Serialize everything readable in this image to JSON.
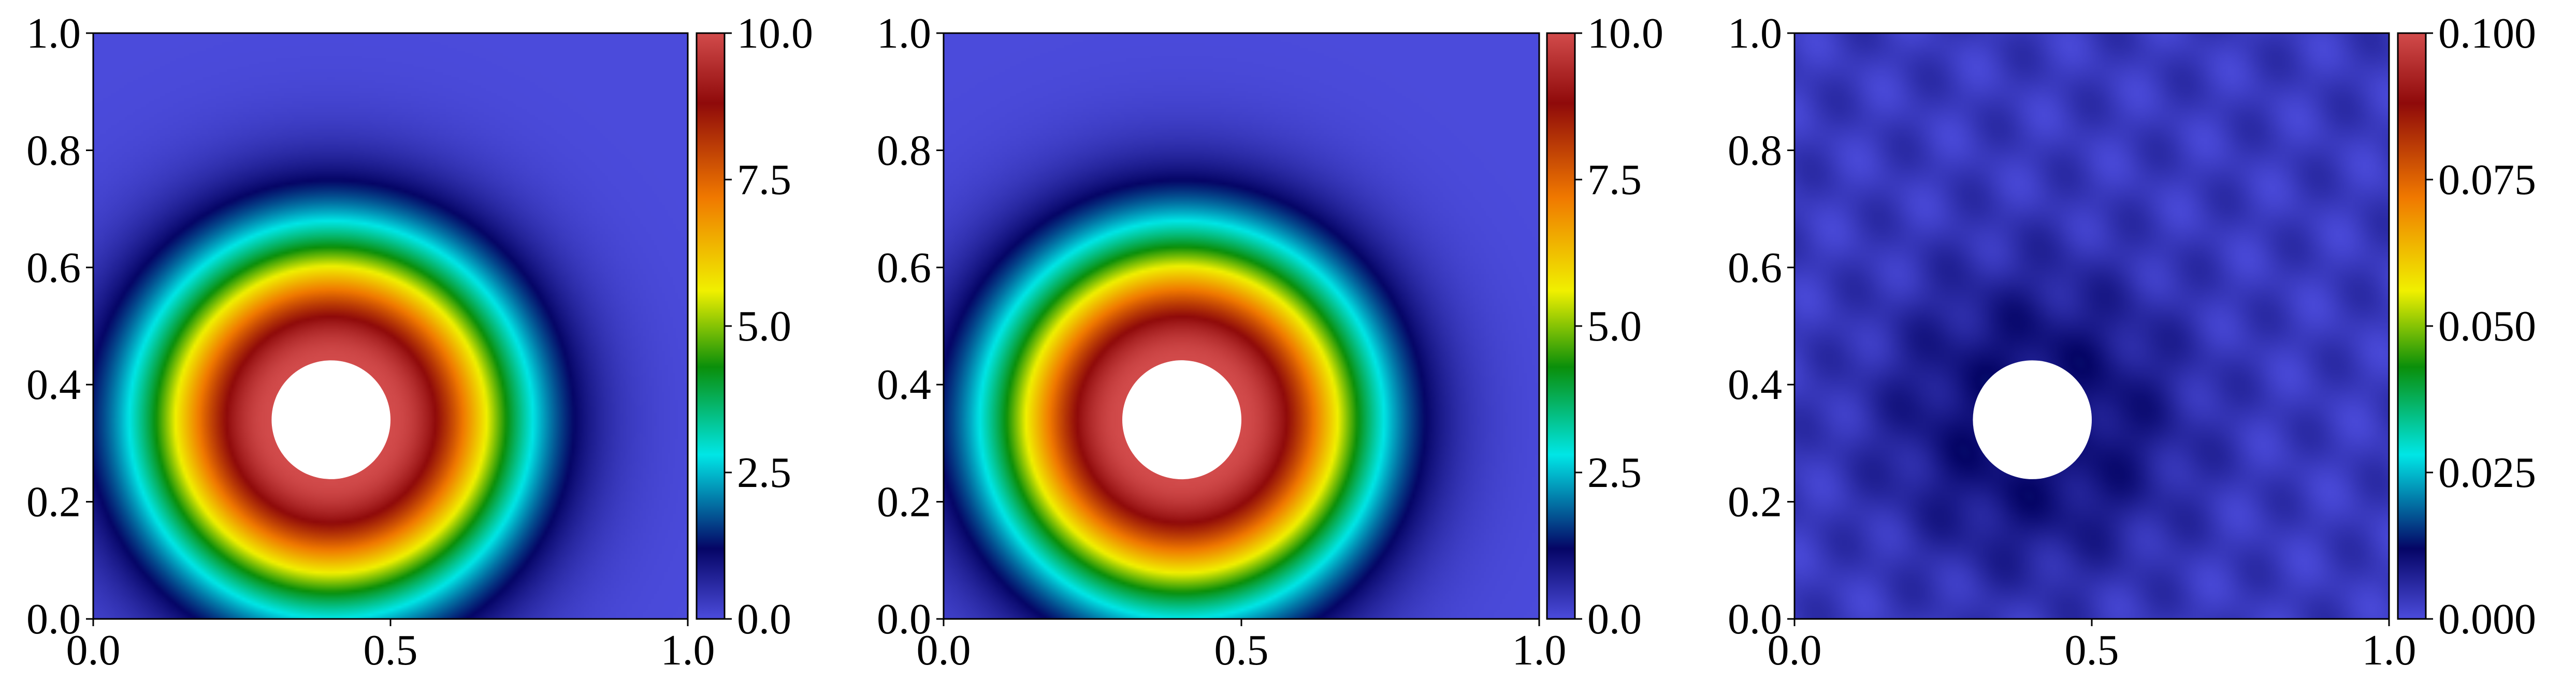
{
  "chart_data": [
    {
      "type": "heatmap",
      "title": "",
      "xlabel": "",
      "ylabel": "",
      "xlim": [
        0.0,
        1.0
      ],
      "ylim": [
        0.0,
        1.0
      ],
      "x_ticks": [
        "0.0",
        "0.5",
        "1.0"
      ],
      "y_ticks": [
        "0.0",
        "0.2",
        "0.4",
        "0.6",
        "0.8",
        "1.0"
      ],
      "colorbar": {
        "range": [
          0.0,
          10.0
        ],
        "ticks": [
          "0.0",
          "2.5",
          "5.0",
          "7.5",
          "10.0"
        ],
        "colormap": "jet"
      },
      "hole": {
        "cx": 0.4,
        "cy": 0.34,
        "r": 0.1
      },
      "field": {
        "peak": 10.0,
        "background": 0.0,
        "decay_width": 0.38
      }
    },
    {
      "type": "heatmap",
      "title": "",
      "xlabel": "",
      "ylabel": "",
      "xlim": [
        0.0,
        1.0
      ],
      "ylim": [
        0.0,
        1.0
      ],
      "x_ticks": [
        "0.0",
        "0.5",
        "1.0"
      ],
      "y_ticks": [
        "0.0",
        "0.2",
        "0.4",
        "0.6",
        "0.8",
        "1.0"
      ],
      "colorbar": {
        "range": [
          0.0,
          10.0
        ],
        "ticks": [
          "0.0",
          "2.5",
          "5.0",
          "7.5",
          "10.0"
        ],
        "colormap": "jet"
      },
      "hole": {
        "cx": 0.4,
        "cy": 0.34,
        "r": 0.1
      },
      "field": {
        "peak": 10.0,
        "background": 0.0,
        "decay_width": 0.38
      }
    },
    {
      "type": "heatmap",
      "title": "",
      "xlabel": "",
      "ylabel": "",
      "xlim": [
        0.0,
        1.0
      ],
      "ylim": [
        0.0,
        1.0
      ],
      "x_ticks": [
        "0.0",
        "0.5",
        "1.0"
      ],
      "y_ticks": [
        "0.0",
        "0.2",
        "0.4",
        "0.6",
        "0.8",
        "1.0"
      ],
      "colorbar": {
        "range": [
          0.0,
          0.1
        ],
        "ticks": [
          "0.000",
          "0.025",
          "0.050",
          "0.075",
          "0.100"
        ],
        "colormap": "jet"
      },
      "hole": {
        "cx": 0.4,
        "cy": 0.34,
        "r": 0.1
      },
      "field": {
        "peak": 0.01,
        "background": 0.003,
        "decay_width": 0.3
      }
    }
  ],
  "colors": {
    "jet_stops": [
      "#4b4bdb",
      "#050566",
      "#00e6e6",
      "#0a8f0a",
      "#f0f000",
      "#f07800",
      "#8f0a0a",
      "#d24b4b"
    ]
  }
}
